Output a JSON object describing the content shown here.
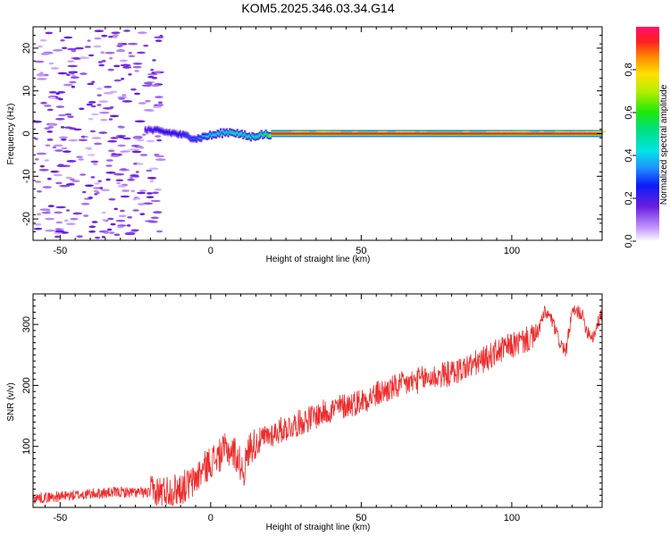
{
  "title": "KOM5.2025.346.03.34.G14",
  "chart_data": [
    {
      "type": "heatmap",
      "xlabel": "Height of straight line (km)",
      "ylabel": "Frequency (Hz)",
      "xlim": [
        -59,
        130
      ],
      "ylim": [
        -25,
        25
      ],
      "xticks": [
        -50,
        0,
        50,
        100
      ],
      "yticks": [
        -20,
        -10,
        0,
        10,
        20
      ],
      "colorbar": {
        "label": "Normalized spectral amplitude",
        "range": [
          0,
          1
        ],
        "ticks": [
          0.0,
          0.2,
          0.4,
          0.6,
          0.8
        ],
        "colormap": "rainbow"
      },
      "ridge": [
        {
          "x": -22,
          "y": 1.0,
          "amp": 0.2
        },
        {
          "x": -17,
          "y": 0.5,
          "amp": 0.25
        },
        {
          "x": -12,
          "y": 0.0,
          "amp": 0.25
        },
        {
          "x": -7,
          "y": -0.8,
          "amp": 0.3
        },
        {
          "x": -5,
          "y": -1.2,
          "amp": 0.3
        },
        {
          "x": -2,
          "y": -0.6,
          "amp": 0.4
        },
        {
          "x": 1,
          "y": -0.3,
          "amp": 0.45
        },
        {
          "x": 4,
          "y": 0.2,
          "amp": 0.45
        },
        {
          "x": 7,
          "y": 0.4,
          "amp": 0.5
        },
        {
          "x": 10,
          "y": -0.3,
          "amp": 0.5
        },
        {
          "x": 13,
          "y": -0.8,
          "amp": 0.45
        },
        {
          "x": 16,
          "y": -0.3,
          "amp": 0.5
        },
        {
          "x": 19,
          "y": -0.2,
          "amp": 0.6
        },
        {
          "x": 20,
          "y": 0.0,
          "amp": 0.95
        },
        {
          "x": 130,
          "y": 0.0,
          "amp": 0.95
        }
      ]
    },
    {
      "type": "line",
      "xlabel": "Height of straight line (km)",
      "ylabel": "SNR (v/v)",
      "xlim": [
        -59,
        130
      ],
      "ylim": [
        0,
        350
      ],
      "xticks": [
        -50,
        0,
        50,
        100
      ],
      "yticks": [
        100,
        200,
        300
      ],
      "series": [
        {
          "color": "#ee2a2a",
          "x": [
            -59,
            -50,
            -40,
            -30,
            -20,
            -12,
            -6,
            -3,
            0,
            3,
            5,
            8,
            10,
            11,
            13,
            15,
            20,
            30,
            40,
            50,
            60,
            70,
            80,
            90,
            95,
            100,
            105,
            108,
            111,
            113,
            116,
            118,
            120,
            123,
            125,
            127,
            130
          ],
          "values": [
            15,
            18,
            22,
            25,
            24,
            28,
            40,
            60,
            75,
            85,
            95,
            90,
            70,
            60,
            100,
            105,
            120,
            140,
            160,
            175,
            195,
            210,
            220,
            240,
            255,
            265,
            275,
            280,
            320,
            310,
            270,
            255,
            320,
            320,
            290,
            280,
            320
          ]
        }
      ]
    }
  ]
}
